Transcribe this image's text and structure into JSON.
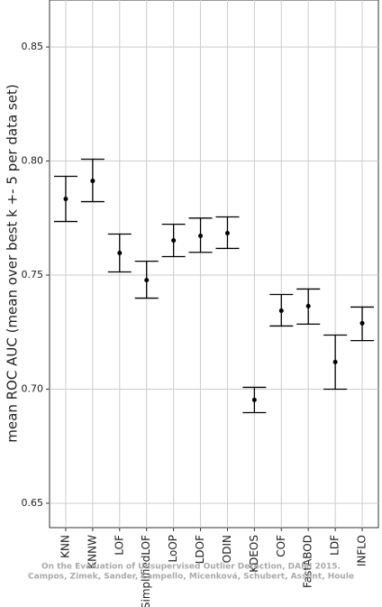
{
  "chart_data": {
    "type": "errorbar",
    "y_label": "mean ROC AUC (mean over best k +- 5 per data set)",
    "categories": [
      "KNN",
      "KNNW",
      "LOF",
      "SimplifiedLOF",
      "LoOP",
      "LDOF",
      "ODIN",
      "KDEOS",
      "COF",
      "FastABOD",
      "LDF",
      "INFLO"
    ],
    "values": [
      0.7834,
      0.7913,
      0.7597,
      0.7478,
      0.7652,
      0.7672,
      0.7684,
      0.6953,
      0.7344,
      0.7364,
      0.7119,
      0.7289
    ],
    "lower": [
      0.7735,
      0.7822,
      0.7514,
      0.7399,
      0.7581,
      0.76,
      0.7617,
      0.6897,
      0.7277,
      0.7285,
      0.7,
      0.7213
    ],
    "upper": [
      0.7933,
      0.8008,
      0.768,
      0.7561,
      0.7723,
      0.775,
      0.7755,
      0.7008,
      0.7415,
      0.7439,
      0.7237,
      0.736
    ],
    "color": "#000000",
    "ylim": [
      0.6393,
      0.8706
    ],
    "yticks": [
      0.85,
      {
        "value": 0.8,
        "label": "0.80"
      },
      0.75,
      {
        "value": 0.7,
        "label": "0.70"
      },
      0.65
    ],
    "grid": true,
    "watermark": [
      "On the Evaluation of Unsupervised Outlier Detection, DAMI 2015.",
      "Campos, Zimek, Sander, Campello, Micenková, Schubert, Assent, Houle"
    ]
  }
}
